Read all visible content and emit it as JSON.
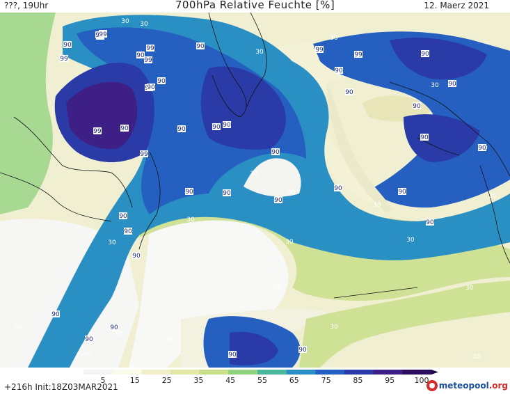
{
  "header": {
    "left": "???, 19Uhr",
    "title": "700hPa Relative Feuchte [%]",
    "right": "12. Maerz 2021"
  },
  "footer": {
    "left": "+216h Init:18Z03MAR2021",
    "logo_name": "meteopool",
    "logo_domain": ".org"
  },
  "legend": {
    "ticks": [
      "5",
      "15",
      "25",
      "35",
      "45",
      "55",
      "65",
      "75",
      "85",
      "95",
      "100"
    ],
    "colors": [
      "#f4f4f4",
      "#fbfbec",
      "#f1efc9",
      "#e2e6a6",
      "#c9de8a",
      "#8fd17e",
      "#4db79b",
      "#2a8fc3",
      "#2560c0",
      "#2a3aa6",
      "#3d1f86",
      "#2b0d5c"
    ]
  },
  "map": {
    "labels": [
      {
        "t": "30",
        "c": "g"
      },
      {
        "t": "30",
        "c": "g"
      },
      {
        "t": "99",
        "c": "b"
      },
      {
        "t": "90",
        "c": "b"
      },
      {
        "t": "99",
        "c": "b"
      },
      {
        "t": "99",
        "c": "b"
      },
      {
        "t": "99",
        "c": "b"
      },
      {
        "t": "90",
        "c": "b"
      },
      {
        "t": "30",
        "c": "g"
      },
      {
        "t": "90",
        "c": "b"
      },
      {
        "t": "30",
        "c": "g"
      },
      {
        "t": "90",
        "c": "b"
      },
      {
        "t": "99",
        "c": "b"
      },
      {
        "t": "90",
        "c": "b"
      },
      {
        "t": "90",
        "c": "b"
      },
      {
        "t": "90",
        "c": "b"
      },
      {
        "t": "90",
        "c": "b"
      },
      {
        "t": "90",
        "c": "b"
      },
      {
        "t": "90",
        "c": "b"
      },
      {
        "t": "30",
        "c": "g"
      },
      {
        "t": "90",
        "c": "b"
      },
      {
        "t": "90",
        "c": "b"
      },
      {
        "t": "90",
        "c": "b"
      },
      {
        "t": "90",
        "c": "b"
      },
      {
        "t": "30",
        "c": "g"
      },
      {
        "t": "30",
        "c": "g"
      },
      {
        "t": "90",
        "c": "b"
      },
      {
        "t": "90",
        "c": "b"
      },
      {
        "t": "30",
        "c": "g"
      },
      {
        "t": "30",
        "c": "g"
      },
      {
        "t": "30",
        "c": "g"
      },
      {
        "t": "90",
        "c": "b"
      },
      {
        "t": "90",
        "c": "b"
      },
      {
        "t": "30",
        "c": "g"
      },
      {
        "t": "90",
        "c": "b"
      },
      {
        "t": "90",
        "c": "b"
      },
      {
        "t": "30",
        "c": "g"
      },
      {
        "t": "90",
        "c": "b"
      },
      {
        "t": "99",
        "c": "b"
      },
      {
        "t": "99",
        "c": "b"
      },
      {
        "t": "90",
        "c": "b"
      },
      {
        "t": "99",
        "c": "b"
      },
      {
        "t": "90",
        "c": "b"
      },
      {
        "t": "99",
        "c": "b"
      },
      {
        "t": "90",
        "c": "b"
      },
      {
        "t": "90",
        "c": "b"
      },
      {
        "t": "90",
        "c": "b"
      },
      {
        "t": "30",
        "c": "g"
      },
      {
        "t": "90",
        "c": "b"
      },
      {
        "t": "30",
        "c": "g"
      },
      {
        "t": "90",
        "c": "b"
      },
      {
        "t": "99",
        "c": "b"
      },
      {
        "t": "99",
        "c": "b"
      },
      {
        "t": "30",
        "c": "g"
      },
      {
        "t": "90",
        "c": "b"
      },
      {
        "t": "90",
        "c": "b"
      },
      {
        "t": "90",
        "c": "b"
      },
      {
        "t": "30",
        "c": "g"
      },
      {
        "t": "30",
        "c": "g"
      },
      {
        "t": "30",
        "c": "g"
      },
      {
        "t": "30",
        "c": "g"
      },
      {
        "t": "90",
        "c": "b"
      },
      {
        "t": "30",
        "c": "g"
      },
      {
        "t": "30",
        "c": "g"
      },
      {
        "t": "30",
        "c": "g"
      }
    ]
  }
}
